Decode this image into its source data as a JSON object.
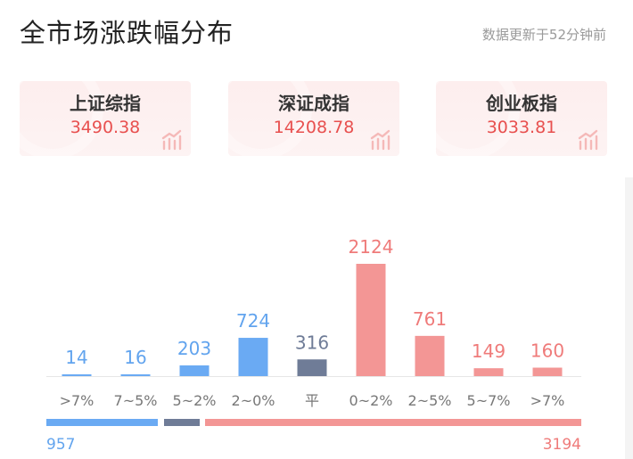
{
  "header": {
    "title": "全市场涨跌幅分布",
    "update_text": "数据更新于52分钟前"
  },
  "indices": [
    {
      "name": "上证综指",
      "value": "3490.38"
    },
    {
      "name": "深证成指",
      "value": "14208.78"
    },
    {
      "name": "创业板指",
      "value": "3033.81"
    }
  ],
  "colors": {
    "down": "#6aaaf3",
    "flat": "#6f7c97",
    "up": "#f39695",
    "up_text": "#ef7b7a",
    "down_text": "#62a4ee",
    "flat_text": "#6f7c97",
    "index_value": "#e8504f"
  },
  "chart_data": {
    "type": "bar",
    "categories": [
      ">7%",
      "7~5%",
      "5~2%",
      "2~0%",
      "平",
      "0~2%",
      "2~5%",
      "5~7%",
      ">7%"
    ],
    "values": [
      14,
      16,
      203,
      724,
      316,
      2124,
      761,
      149,
      160
    ],
    "groups": [
      "down",
      "down",
      "down",
      "down",
      "flat",
      "up",
      "up",
      "up",
      "up"
    ],
    "title": "",
    "xlabel": "",
    "ylabel": ""
  },
  "summary": {
    "down_total": "957",
    "up_total": "3194"
  }
}
